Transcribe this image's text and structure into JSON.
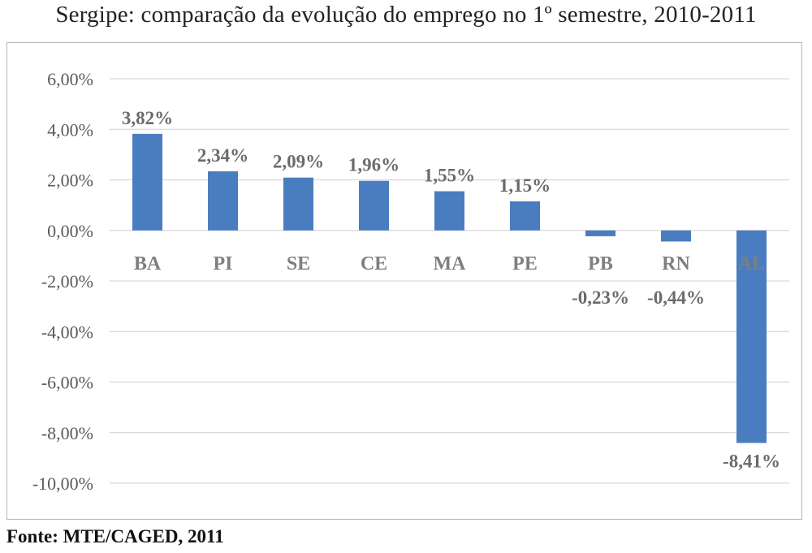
{
  "chart_data": {
    "type": "bar",
    "title": "Sergipe: comparação da evolução do emprego no 1º semestre, 2010-2011",
    "categories": [
      "BA",
      "PI",
      "SE",
      "CE",
      "MA",
      "PE",
      "PB",
      "RN",
      "AL"
    ],
    "values": [
      3.82,
      2.34,
      2.09,
      1.96,
      1.55,
      1.15,
      -0.23,
      -0.44,
      -8.41
    ],
    "data_labels": [
      "3,82%",
      "2,34%",
      "2,09%",
      "1,96%",
      "1,55%",
      "1,15%",
      "-0,23%",
      "-0,44%",
      "-8,41%"
    ],
    "yticks": [
      6,
      4,
      2,
      0,
      -2,
      -4,
      -6,
      -8,
      -10
    ],
    "ytick_labels": [
      "6,00%",
      "4,00%",
      "2,00%",
      "0,00%",
      "-2,00%",
      "-4,00%",
      "-6,00%",
      "-8,00%",
      "-10,00%"
    ],
    "ylim": [
      -10,
      6
    ],
    "grid": true,
    "legend": "none",
    "xlabel": "",
    "ylabel": "",
    "bar_color": "#4a7dbf"
  },
  "source": "Fonte: MTE/CAGED, 2011"
}
